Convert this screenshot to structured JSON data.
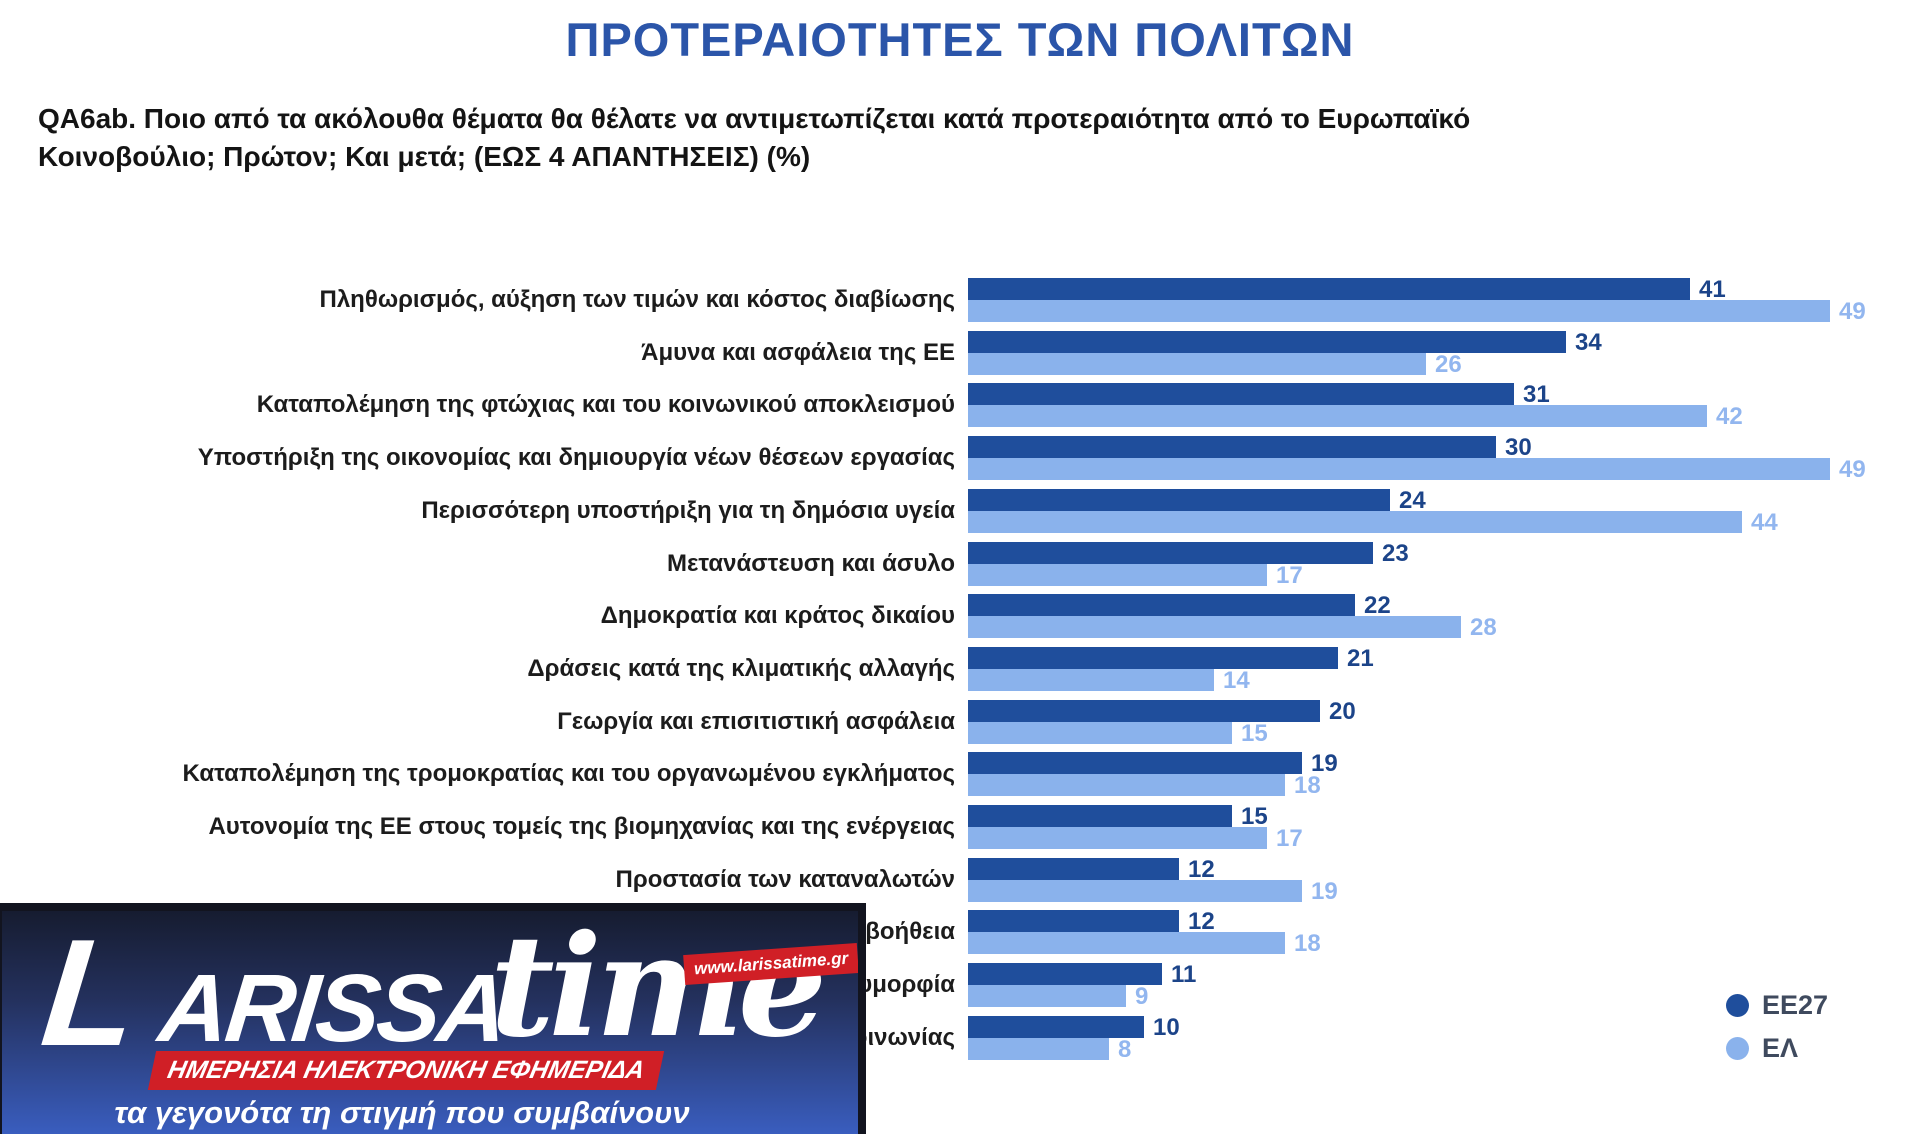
{
  "title": "ΠΡΟΤΕΡΑΙΟΤΗΤΕΣ ΤΩΝ ΠΟΛΙΤΩΝ",
  "subtitle_lines": [
    "QA6ab. Ποιο από τα ακόλουθα θέματα θα θέλατε να αντιμετωπίζεται κατά προτεραιότητα από το Ευρωπαϊκό",
    "Κοινοβούλιο; Πρώτον;  Και μετά; (ΕΩΣ 4 ΑΠΑΝΤΗΣΕΙΣ) (%)"
  ],
  "legend": {
    "items": [
      {
        "label": "EE27",
        "color": "#1f4e9c"
      },
      {
        "label": "ΕΛ",
        "color": "#8ab2ec"
      }
    ],
    "position": "bottom-right"
  },
  "colors": {
    "title_blue": "#2b55a9",
    "ee27_bar": "#1f4e9c",
    "el_bar": "#8ab2ec",
    "ee27_value_text": "#1c4489",
    "el_value_text": "#92b6ef",
    "logo_red": "#d01f26"
  },
  "chart_data": {
    "type": "bar",
    "orientation": "horizontal",
    "title": "ΠΡΟΤΕΡΑΙΟΤΗΤΕΣ ΤΩΝ ΠΟΛΙΤΩΝ",
    "categories": [
      "Πληθωρισμός, αύξηση των τιμών και κόστος διαβίωσης",
      "Άμυνα και ασφάλεια της ΕΕ",
      "Καταπολέμηση της φτώχιας και του κοινωνικού αποκλεισμού",
      "Υποστήριξη της οικονομίας και δημιουργία νέων θέσεων εργασίας",
      "Περισσότερη υποστήριξη για τη δημόσια υγεία",
      "Μετανάστευση και άσυλο",
      "Δημοκρατία και κράτος δικαίου",
      "Δράσεις κατά της κλιματικής αλλαγής",
      "Γεωργία και επισιτιστική ασφάλεια",
      "Καταπολέμηση της τρομοκρατίας και του οργανωμένου εγκλήματος",
      "Αυτονομία της ΕΕ στους τομείς της βιομηχανίας και της ενέργειας",
      "Προστασία των καταναλωτών",
      "Ανθρωπιστική βοήθεια",
      "Ισότητα των φύλων, ένταξη και πολυμορφία",
      "Ψηφιοποίηση της οικονομίας και της κοινωνίας"
    ],
    "series": [
      {
        "name": "EE27",
        "values": [
          41,
          34,
          31,
          30,
          24,
          23,
          22,
          21,
          20,
          19,
          15,
          12,
          12,
          11,
          10
        ]
      },
      {
        "name": "ΕΛ",
        "values": [
          49,
          26,
          42,
          49,
          44,
          17,
          28,
          14,
          15,
          18,
          17,
          19,
          18,
          9,
          8
        ]
      }
    ],
    "xlim": [
      0,
      52
    ],
    "value_labels": true,
    "grid": false,
    "legend_position": "bottom-right"
  },
  "watermark": {
    "brand_initial": "L",
    "brand_rest": "ARISSA",
    "brand_secondary": "time",
    "url": "www.larissatime.gr",
    "banner": "ΗΜΕΡΗΣΙΑ ΗΛΕΚΤΡΟΝΙΚΗ ΕΦΗΜΕΡΙΔΑ",
    "slogan": "τα γεγονότα τη στιγμή που συμβαίνουν"
  }
}
